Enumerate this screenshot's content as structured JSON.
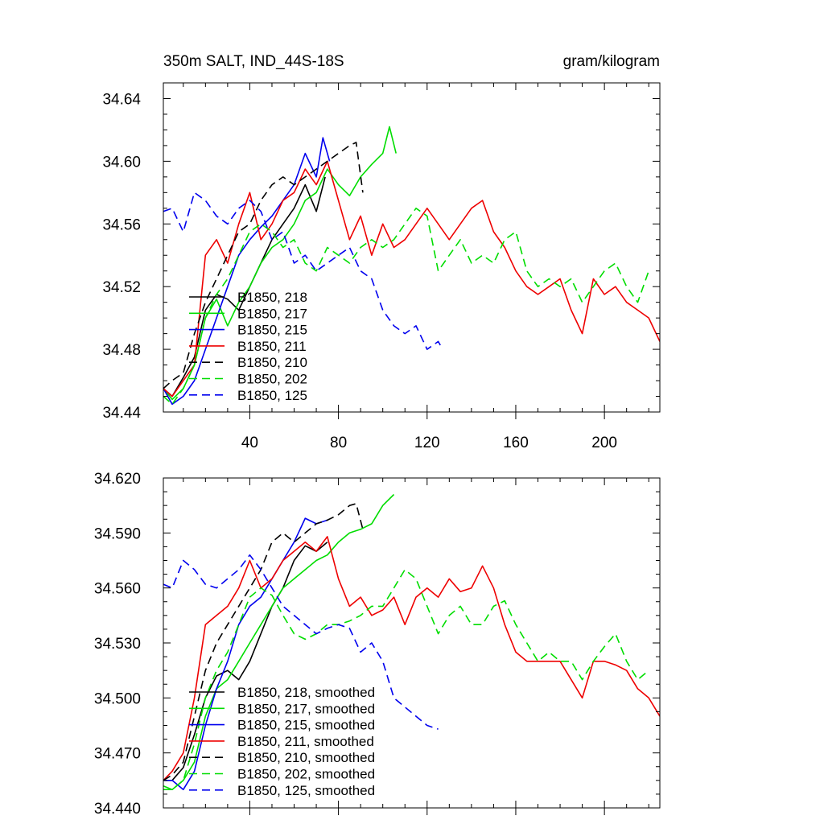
{
  "chart_data": [
    {
      "type": "line",
      "title": "350m SALT, IND_44S-18S",
      "units": "gram/kilogram",
      "xlim": [
        1,
        225
      ],
      "ylim": [
        34.44,
        34.65
      ],
      "xticks": [
        40,
        80,
        120,
        160,
        200
      ],
      "yticks": [
        34.44,
        34.48,
        34.52,
        34.56,
        34.6,
        34.64
      ],
      "ytick_labels": [
        "34.44",
        "34.48",
        "34.52",
        "34.56",
        "34.60",
        "34.64"
      ],
      "legend_position": "lower-left",
      "series": [
        {
          "name": "B1850, 218",
          "color": "#000000",
          "dash": "solid",
          "x": [
            1,
            5,
            10,
            15,
            20,
            25,
            30,
            35,
            40,
            45,
            50,
            55,
            60,
            65,
            70,
            74
          ],
          "y": [
            34.455,
            34.45,
            34.462,
            34.475,
            34.505,
            34.515,
            34.512,
            34.505,
            34.52,
            34.535,
            34.55,
            34.56,
            34.57,
            34.585,
            34.568,
            34.59
          ]
        },
        {
          "name": "B1850, 217",
          "color": "#00dd00",
          "dash": "solid",
          "x": [
            1,
            5,
            10,
            15,
            20,
            25,
            30,
            35,
            40,
            45,
            50,
            55,
            60,
            65,
            70,
            75,
            80,
            85,
            90,
            95,
            100,
            103,
            106
          ],
          "y": [
            34.455,
            34.448,
            34.455,
            34.47,
            34.5,
            34.512,
            34.495,
            34.51,
            34.52,
            34.535,
            34.545,
            34.55,
            34.56,
            34.575,
            34.58,
            34.595,
            34.585,
            34.578,
            34.59,
            34.598,
            34.605,
            34.622,
            34.605
          ]
        },
        {
          "name": "B1850, 215",
          "color": "#0000ee",
          "dash": "solid",
          "x": [
            1,
            5,
            10,
            15,
            20,
            25,
            30,
            35,
            40,
            45,
            50,
            55,
            60,
            65,
            70,
            73,
            76
          ],
          "y": [
            34.455,
            34.445,
            34.45,
            34.46,
            34.48,
            34.5,
            34.52,
            34.54,
            34.55,
            34.558,
            34.565,
            34.575,
            34.585,
            34.605,
            34.59,
            34.615,
            34.6
          ]
        },
        {
          "name": "B1850, 211",
          "color": "#ee0000",
          "dash": "solid",
          "x": [
            1,
            5,
            10,
            15,
            20,
            25,
            30,
            35,
            40,
            45,
            50,
            55,
            60,
            65,
            70,
            75,
            80,
            85,
            90,
            95,
            100,
            105,
            110,
            115,
            120,
            125,
            130,
            135,
            140,
            145,
            150,
            155,
            160,
            165,
            170,
            175,
            180,
            185,
            190,
            195,
            200,
            205,
            210,
            215,
            220,
            225
          ],
          "y": [
            34.455,
            34.45,
            34.46,
            34.47,
            34.54,
            34.55,
            34.535,
            34.56,
            34.58,
            34.55,
            34.56,
            34.575,
            34.58,
            34.595,
            34.585,
            34.6,
            34.575,
            34.55,
            34.565,
            34.54,
            34.56,
            34.545,
            34.55,
            34.56,
            34.57,
            34.56,
            34.55,
            34.56,
            34.57,
            34.575,
            34.555,
            34.545,
            34.53,
            34.52,
            34.515,
            34.52,
            34.525,
            34.505,
            34.49,
            34.525,
            34.515,
            34.52,
            34.51,
            34.505,
            34.5,
            34.485
          ]
        },
        {
          "name": "B1850, 210",
          "color": "#000000",
          "dash": "dashed",
          "x": [
            1,
            5,
            10,
            15,
            20,
            25,
            30,
            35,
            40,
            45,
            50,
            55,
            60,
            65,
            70,
            75,
            80,
            85,
            88,
            91
          ],
          "y": [
            34.455,
            34.46,
            34.465,
            34.49,
            34.51,
            34.525,
            34.54,
            34.555,
            34.56,
            34.575,
            34.585,
            34.59,
            34.585,
            34.59,
            34.595,
            34.6,
            34.605,
            34.61,
            34.612,
            34.58
          ]
        },
        {
          "name": "B1850, 202",
          "color": "#00dd00",
          "dash": "dashed",
          "x": [
            1,
            5,
            10,
            15,
            20,
            25,
            30,
            35,
            40,
            45,
            50,
            55,
            60,
            65,
            70,
            75,
            80,
            85,
            90,
            95,
            100,
            105,
            110,
            115,
            120,
            125,
            130,
            135,
            140,
            145,
            150,
            155,
            160,
            165,
            170,
            175,
            180,
            185,
            190,
            195,
            200,
            205,
            210,
            215,
            220
          ],
          "y": [
            34.45,
            34.445,
            34.455,
            34.47,
            34.5,
            34.515,
            34.525,
            34.54,
            34.555,
            34.56,
            34.555,
            34.545,
            34.55,
            34.535,
            34.53,
            34.545,
            34.54,
            34.535,
            34.545,
            34.55,
            34.545,
            34.55,
            34.56,
            34.57,
            34.565,
            34.53,
            34.54,
            34.55,
            34.535,
            34.54,
            34.535,
            34.55,
            34.555,
            34.53,
            34.52,
            34.525,
            34.52,
            34.525,
            34.51,
            34.52,
            34.53,
            34.535,
            34.52,
            34.51,
            34.53
          ]
        },
        {
          "name": "B1850, 125",
          "color": "#0000ee",
          "dash": "dashed",
          "x": [
            1,
            5,
            10,
            15,
            20,
            25,
            30,
            35,
            40,
            45,
            50,
            55,
            60,
            65,
            70,
            75,
            80,
            85,
            90,
            95,
            100,
            105,
            110,
            115,
            120,
            125,
            127
          ],
          "y": [
            34.568,
            34.57,
            34.555,
            34.58,
            34.575,
            34.565,
            34.56,
            34.57,
            34.575,
            34.568,
            34.55,
            34.555,
            34.535,
            34.54,
            34.53,
            34.535,
            34.54,
            34.545,
            34.53,
            34.525,
            34.505,
            34.495,
            34.49,
            34.495,
            34.48,
            34.485,
            34.48
          ]
        }
      ]
    },
    {
      "type": "line",
      "title": "",
      "xlim": [
        1,
        225
      ],
      "ylim": [
        34.44,
        34.62
      ],
      "xticks": [
        40,
        80,
        120,
        160,
        200
      ],
      "yticks": [
        34.44,
        34.47,
        34.5,
        34.53,
        34.56,
        34.59,
        34.62
      ],
      "ytick_labels": [
        "34.440",
        "34.470",
        "34.500",
        "34.530",
        "34.560",
        "34.590",
        "34.620"
      ],
      "legend_position": "lower-left",
      "series": [
        {
          "name": "B1850, 218, smoothed",
          "color": "#000000",
          "dash": "solid",
          "x": [
            1,
            5,
            10,
            15,
            20,
            25,
            30,
            35,
            40,
            45,
            50,
            55,
            60,
            65,
            70,
            75
          ],
          "y": [
            34.455,
            34.455,
            34.462,
            34.48,
            34.5,
            34.512,
            34.515,
            34.51,
            34.52,
            34.535,
            34.55,
            34.56,
            34.575,
            34.583,
            34.58,
            34.585
          ]
        },
        {
          "name": "B1850, 217, smoothed",
          "color": "#00dd00",
          "dash": "solid",
          "x": [
            1,
            5,
            10,
            15,
            20,
            25,
            30,
            35,
            40,
            45,
            50,
            55,
            60,
            65,
            70,
            75,
            80,
            85,
            90,
            95,
            100,
            105
          ],
          "y": [
            34.452,
            34.45,
            34.455,
            34.465,
            34.49,
            34.505,
            34.51,
            34.52,
            34.53,
            34.54,
            34.55,
            34.56,
            34.565,
            34.57,
            34.575,
            34.578,
            34.585,
            34.59,
            34.592,
            34.595,
            34.605,
            34.611
          ]
        },
        {
          "name": "B1850, 215, smoothed",
          "color": "#0000ee",
          "dash": "solid",
          "x": [
            1,
            5,
            10,
            15,
            20,
            25,
            30,
            35,
            40,
            45,
            50,
            55,
            60,
            65,
            70,
            75
          ],
          "y": [
            34.455,
            34.455,
            34.45,
            34.46,
            34.485,
            34.505,
            34.52,
            34.54,
            34.55,
            34.555,
            34.565,
            34.575,
            34.585,
            34.598,
            34.595,
            34.597
          ]
        },
        {
          "name": "B1850, 211, smoothed",
          "color": "#ee0000",
          "dash": "solid",
          "x": [
            1,
            5,
            10,
            15,
            20,
            25,
            30,
            35,
            40,
            45,
            50,
            55,
            60,
            65,
            70,
            75,
            80,
            85,
            90,
            95,
            100,
            105,
            110,
            115,
            120,
            125,
            130,
            135,
            140,
            145,
            150,
            155,
            160,
            165,
            170,
            175,
            180,
            185,
            190,
            195,
            200,
            205,
            210,
            215,
            220,
            225
          ],
          "y": [
            34.455,
            34.46,
            34.47,
            34.5,
            34.54,
            34.545,
            34.55,
            34.56,
            34.575,
            34.56,
            34.565,
            34.575,
            34.58,
            34.585,
            34.58,
            34.588,
            34.565,
            34.55,
            34.555,
            34.545,
            34.548,
            34.555,
            34.54,
            34.555,
            34.56,
            34.555,
            34.565,
            34.558,
            34.56,
            34.572,
            34.56,
            34.54,
            34.525,
            34.52,
            34.52,
            34.52,
            34.52,
            34.51,
            34.5,
            34.52,
            34.52,
            34.518,
            34.515,
            34.505,
            34.5,
            34.49
          ]
        },
        {
          "name": "B1850, 210, smoothed",
          "color": "#000000",
          "dash": "dashed",
          "x": [
            1,
            5,
            10,
            15,
            20,
            25,
            30,
            35,
            40,
            45,
            50,
            55,
            60,
            65,
            70,
            75,
            80,
            85,
            88,
            91
          ],
          "y": [
            34.455,
            34.458,
            34.465,
            34.49,
            34.515,
            34.53,
            34.54,
            34.55,
            34.56,
            34.57,
            34.585,
            34.59,
            34.585,
            34.59,
            34.595,
            34.597,
            34.6,
            34.605,
            34.606,
            34.592
          ]
        },
        {
          "name": "B1850, 202, smoothed",
          "color": "#00dd00",
          "dash": "dashed",
          "x": [
            1,
            5,
            10,
            15,
            20,
            25,
            30,
            35,
            40,
            45,
            50,
            55,
            60,
            65,
            70,
            75,
            80,
            85,
            90,
            95,
            100,
            105,
            110,
            115,
            120,
            125,
            130,
            135,
            140,
            145,
            150,
            155,
            160,
            165,
            170,
            175,
            180,
            185,
            190,
            195,
            200,
            205,
            210,
            215,
            220
          ],
          "y": [
            34.45,
            34.45,
            34.455,
            34.475,
            34.5,
            34.515,
            34.525,
            34.54,
            34.555,
            34.56,
            34.556,
            34.545,
            34.535,
            34.532,
            34.535,
            34.54,
            34.54,
            34.542,
            34.545,
            34.55,
            34.55,
            34.56,
            34.57,
            34.565,
            34.55,
            34.535,
            34.545,
            34.55,
            34.54,
            34.54,
            34.55,
            34.553,
            34.54,
            34.53,
            34.52,
            34.525,
            34.52,
            34.52,
            34.51,
            34.52,
            34.528,
            34.535,
            34.52,
            34.51,
            34.515
          ]
        },
        {
          "name": "B1850, 125, smoothed",
          "color": "#0000ee",
          "dash": "dashed",
          "x": [
            1,
            5,
            10,
            15,
            20,
            25,
            30,
            35,
            40,
            45,
            50,
            55,
            60,
            65,
            70,
            75,
            80,
            85,
            90,
            95,
            100,
            105,
            110,
            115,
            120,
            125
          ],
          "y": [
            34.562,
            34.56,
            34.575,
            34.57,
            34.562,
            34.56,
            34.565,
            34.57,
            34.578,
            34.57,
            34.56,
            34.55,
            34.545,
            34.54,
            34.535,
            34.538,
            34.54,
            34.538,
            34.525,
            34.53,
            34.52,
            34.5,
            34.495,
            34.49,
            34.485,
            34.483
          ]
        }
      ]
    }
  ]
}
